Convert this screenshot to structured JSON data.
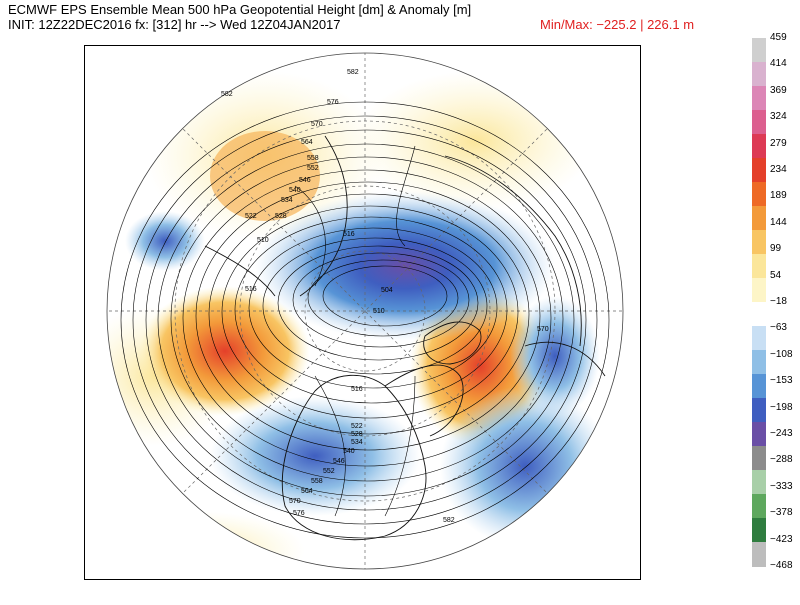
{
  "header": {
    "title_line1": "ECMWF EPS Ensemble Mean 500 hPa Geopotential Height [dm] & Anomaly [m]",
    "title_line2": "INIT: 12Z22DEC2016 fx: [312] hr --> Wed 12Z04JAN2017",
    "minmax": "Min/Max: −225.2 | 226.1 m"
  },
  "colorbar": {
    "labels": [
      "459",
      "414",
      "369",
      "324",
      "279",
      "234",
      "189",
      "144",
      "99",
      "54",
      "−18",
      "−63",
      "−108",
      "−153",
      "−198",
      "−243",
      "−288",
      "−333",
      "−378",
      "−423",
      "−468"
    ],
    "colors": [
      "#cfcfcf",
      "#d9b2cf",
      "#dc86b6",
      "#dc5f8f",
      "#dd3a55",
      "#e4402a",
      "#ee6a26",
      "#f39a3a",
      "#f8c563",
      "#fbe69a",
      "#fdf5c7",
      "#ffffff",
      "#c8dff4",
      "#8fbfe6",
      "#5794d6",
      "#3f5ec0",
      "#6a4fa6",
      "#8c8c8c",
      "#a8cfa8",
      "#5ea85e",
      "#2f7d3f",
      "#bdbdbd"
    ]
  },
  "map": {
    "contour_labels": [
      "582",
      "576",
      "570",
      "564",
      "558",
      "552",
      "546",
      "540",
      "534",
      "528",
      "522",
      "516",
      "510",
      "504",
      "516",
      "510",
      "516",
      "522",
      "528",
      "534",
      "540",
      "546",
      "552",
      "558",
      "564",
      "570",
      "576",
      "582",
      "570",
      "582"
    ],
    "anomaly_colors": {
      "positive_strong": "#e4402a",
      "positive_mid": "#f39a3a",
      "positive_weak": "#fdf2b8",
      "negative_weak": "#bcd9f2",
      "negative_mid": "#5794d6",
      "negative_strong": "#3f5ec0"
    }
  }
}
